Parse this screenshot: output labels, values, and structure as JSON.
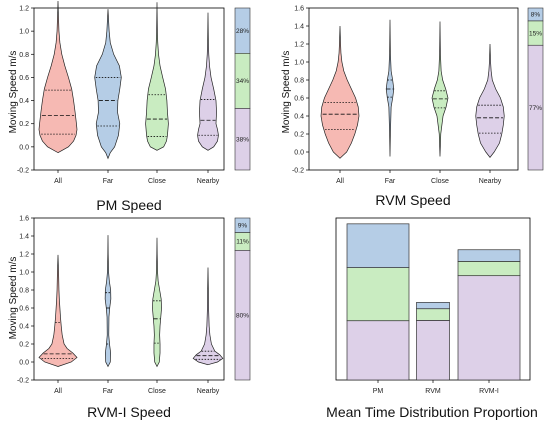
{
  "colors": {
    "All": "#f6b9b3",
    "Far": "#b5cde6",
    "Close": "#c9ecc1",
    "Nearby": "#ddd0e8",
    "stack_top": "#b5cde6",
    "stack_mid": "#c9ecc1",
    "stack_bottom": "#ddd0e8"
  },
  "chart_data": [
    {
      "type": "violin",
      "title": "PM Speed",
      "ylabel": "Moving Speed m/s",
      "categories": [
        "All",
        "Far",
        "Close",
        "Nearby"
      ],
      "ylim": [
        -0.2,
        1.2
      ],
      "yticks": [
        -0.2,
        0.0,
        0.2,
        0.4,
        0.6,
        0.8,
        1.0,
        1.2
      ],
      "ytick_labels": [
        "-0.2",
        "0.0",
        "0.2",
        "0.4",
        "0.6",
        "0.8",
        "1.0",
        "1.2"
      ],
      "violins": [
        {
          "name": "All",
          "min": -0.05,
          "max": 1.26,
          "q1": 0.11,
          "median": 0.27,
          "q3": 0.49,
          "profile": [
            [
              -0.05,
              0
            ],
            [
              0,
              0.55
            ],
            [
              0.05,
              0.82
            ],
            [
              0.1,
              0.95
            ],
            [
              0.15,
              1
            ],
            [
              0.2,
              0.97
            ],
            [
              0.3,
              0.9
            ],
            [
              0.4,
              0.82
            ],
            [
              0.5,
              0.72
            ],
            [
              0.6,
              0.55
            ],
            [
              0.7,
              0.36
            ],
            [
              0.8,
              0.2
            ],
            [
              0.9,
              0.1
            ],
            [
              1.0,
              0.05
            ],
            [
              1.1,
              0.03
            ],
            [
              1.26,
              0
            ]
          ]
        },
        {
          "name": "Far",
          "min": -0.1,
          "max": 1.19,
          "q1": 0.18,
          "median": 0.4,
          "q3": 0.6,
          "profile": [
            [
              -0.1,
              0
            ],
            [
              -0.05,
              0.12
            ],
            [
              0,
              0.35
            ],
            [
              0.1,
              0.55
            ],
            [
              0.2,
              0.62
            ],
            [
              0.3,
              0.5
            ],
            [
              0.4,
              0.52
            ],
            [
              0.5,
              0.62
            ],
            [
              0.6,
              0.7
            ],
            [
              0.7,
              0.6
            ],
            [
              0.8,
              0.3
            ],
            [
              0.9,
              0.12
            ],
            [
              1.0,
              0.06
            ],
            [
              1.19,
              0
            ]
          ]
        },
        {
          "name": "Close",
          "min": -0.03,
          "max": 1.25,
          "q1": 0.09,
          "median": 0.24,
          "q3": 0.45,
          "profile": [
            [
              -0.03,
              0
            ],
            [
              0,
              0.35
            ],
            [
              0.05,
              0.5
            ],
            [
              0.1,
              0.55
            ],
            [
              0.2,
              0.6
            ],
            [
              0.3,
              0.55
            ],
            [
              0.4,
              0.52
            ],
            [
              0.5,
              0.45
            ],
            [
              0.6,
              0.3
            ],
            [
              0.7,
              0.16
            ],
            [
              0.8,
              0.08
            ],
            [
              0.9,
              0.04
            ],
            [
              1.0,
              0.02
            ],
            [
              1.25,
              0
            ]
          ]
        },
        {
          "name": "Nearby",
          "min": -0.03,
          "max": 1.16,
          "q1": 0.1,
          "median": 0.23,
          "q3": 0.41,
          "profile": [
            [
              -0.03,
              0
            ],
            [
              0,
              0.3
            ],
            [
              0.05,
              0.5
            ],
            [
              0.1,
              0.55
            ],
            [
              0.15,
              0.5
            ],
            [
              0.2,
              0.42
            ],
            [
              0.3,
              0.45
            ],
            [
              0.4,
              0.42
            ],
            [
              0.5,
              0.3
            ],
            [
              0.6,
              0.16
            ],
            [
              0.7,
              0.08
            ],
            [
              0.8,
              0.04
            ],
            [
              0.9,
              0.02
            ],
            [
              1.16,
              0
            ]
          ]
        }
      ],
      "stack": [
        {
          "label": "28%",
          "value": 28
        },
        {
          "label": "34%",
          "value": 34
        },
        {
          "label": "38%",
          "value": 38
        }
      ]
    },
    {
      "type": "violin",
      "title": "RVM Speed",
      "ylabel": "Moving Speed m/s",
      "categories": [
        "All",
        "Far",
        "Close",
        "Nearby"
      ],
      "ylim": [
        -0.2,
        1.6
      ],
      "yticks": [
        -0.2,
        0.0,
        0.2,
        0.4,
        0.6,
        0.8,
        1.0,
        1.2,
        1.4,
        1.6
      ],
      "ytick_labels": [
        "-0.2",
        "0.0",
        "0.2",
        "0.4",
        "0.6",
        "0.8",
        "1.0",
        "1.2",
        "1.4",
        "1.6"
      ],
      "violins": [
        {
          "name": "All",
          "min": -0.07,
          "max": 1.4,
          "q1": 0.25,
          "median": 0.42,
          "q3": 0.55,
          "profile": [
            [
              -0.07,
              0
            ],
            [
              0,
              0.35
            ],
            [
              0.1,
              0.6
            ],
            [
              0.2,
              0.78
            ],
            [
              0.3,
              0.92
            ],
            [
              0.4,
              1
            ],
            [
              0.5,
              0.96
            ],
            [
              0.6,
              0.82
            ],
            [
              0.7,
              0.6
            ],
            [
              0.8,
              0.38
            ],
            [
              0.9,
              0.2
            ],
            [
              1.0,
              0.1
            ],
            [
              1.1,
              0.05
            ],
            [
              1.2,
              0.03
            ],
            [
              1.4,
              0
            ]
          ]
        },
        {
          "name": "Far",
          "min": -0.05,
          "max": 1.47,
          "q1": 0.61,
          "median": 0.7,
          "q3": 0.8,
          "profile": [
            [
              -0.05,
              0
            ],
            [
              0.2,
              0.02
            ],
            [
              0.5,
              0.06
            ],
            [
              0.6,
              0.14
            ],
            [
              0.7,
              0.2
            ],
            [
              0.8,
              0.14
            ],
            [
              0.9,
              0.06
            ],
            [
              1.1,
              0.02
            ],
            [
              1.47,
              0
            ]
          ]
        },
        {
          "name": "Close",
          "min": -0.05,
          "max": 1.45,
          "q1": 0.49,
          "median": 0.59,
          "q3": 0.68,
          "profile": [
            [
              -0.05,
              0
            ],
            [
              0.2,
              0.04
            ],
            [
              0.4,
              0.16
            ],
            [
              0.5,
              0.32
            ],
            [
              0.6,
              0.42
            ],
            [
              0.7,
              0.3
            ],
            [
              0.8,
              0.14
            ],
            [
              0.9,
              0.06
            ],
            [
              1.1,
              0.02
            ],
            [
              1.45,
              0
            ]
          ]
        },
        {
          "name": "Nearby",
          "min": -0.06,
          "max": 1.2,
          "q1": 0.21,
          "median": 0.38,
          "q3": 0.52,
          "profile": [
            [
              -0.06,
              0
            ],
            [
              0,
              0.22
            ],
            [
              0.1,
              0.5
            ],
            [
              0.2,
              0.62
            ],
            [
              0.3,
              0.7
            ],
            [
              0.4,
              0.75
            ],
            [
              0.5,
              0.7
            ],
            [
              0.6,
              0.55
            ],
            [
              0.7,
              0.3
            ],
            [
              0.8,
              0.12
            ],
            [
              0.9,
              0.06
            ],
            [
              1.0,
              0.03
            ],
            [
              1.2,
              0
            ]
          ]
        }
      ],
      "stack": [
        {
          "label": "8%",
          "value": 8
        },
        {
          "label": "15%",
          "value": 15
        },
        {
          "label": "77%",
          "value": 77
        }
      ]
    },
    {
      "type": "violin",
      "title": "RVM-I Speed",
      "ylabel": "Moving Speed m/s",
      "categories": [
        "All",
        "Far",
        "Close",
        "Nearby"
      ],
      "ylim": [
        -0.2,
        1.6
      ],
      "yticks": [
        -0.2,
        0.0,
        0.2,
        0.4,
        0.6,
        0.8,
        1.0,
        1.2,
        1.4,
        1.6
      ],
      "ytick_labels": [
        "-0.2",
        "0.0",
        "0.2",
        "0.4",
        "0.6",
        "0.8",
        "1.0",
        "1.2",
        "1.4",
        "1.6"
      ],
      "violins": [
        {
          "name": "All",
          "min": -0.05,
          "max": 1.19,
          "q1": 0.04,
          "median": 0.09,
          "q3": 0.44,
          "profile": [
            [
              -0.05,
              0
            ],
            [
              0,
              0.7
            ],
            [
              0.05,
              1
            ],
            [
              0.1,
              0.78
            ],
            [
              0.15,
              0.48
            ],
            [
              0.2,
              0.32
            ],
            [
              0.3,
              0.22
            ],
            [
              0.4,
              0.17
            ],
            [
              0.5,
              0.13
            ],
            [
              0.6,
              0.1
            ],
            [
              0.7,
              0.07
            ],
            [
              0.8,
              0.05
            ],
            [
              1.0,
              0.03
            ],
            [
              1.19,
              0
            ]
          ]
        },
        {
          "name": "Far",
          "min": -0.05,
          "max": 1.41,
          "q1": 0.2,
          "median": 0.6,
          "q3": 0.77,
          "profile": [
            [
              -0.05,
              0
            ],
            [
              0,
              0.12
            ],
            [
              0.1,
              0.14
            ],
            [
              0.2,
              0.08
            ],
            [
              0.3,
              0.04
            ],
            [
              0.5,
              0.05
            ],
            [
              0.6,
              0.09
            ],
            [
              0.7,
              0.15
            ],
            [
              0.8,
              0.14
            ],
            [
              0.9,
              0.07
            ],
            [
              1.0,
              0.03
            ],
            [
              1.2,
              0.01
            ],
            [
              1.41,
              0
            ]
          ]
        },
        {
          "name": "Close",
          "min": -0.05,
          "max": 1.38,
          "q1": 0.21,
          "median": 0.48,
          "q3": 0.68,
          "profile": [
            [
              -0.05,
              0
            ],
            [
              0,
              0.12
            ],
            [
              0.1,
              0.16
            ],
            [
              0.2,
              0.16
            ],
            [
              0.3,
              0.14
            ],
            [
              0.4,
              0.16
            ],
            [
              0.5,
              0.2
            ],
            [
              0.6,
              0.24
            ],
            [
              0.7,
              0.22
            ],
            [
              0.8,
              0.14
            ],
            [
              0.9,
              0.06
            ],
            [
              1.0,
              0.03
            ],
            [
              1.2,
              0.01
            ],
            [
              1.38,
              0
            ]
          ]
        },
        {
          "name": "Nearby",
          "min": -0.03,
          "max": 1.05,
          "q1": 0.03,
          "median": 0.07,
          "q3": 0.12,
          "profile": [
            [
              -0.03,
              0
            ],
            [
              0,
              0.5
            ],
            [
              0.04,
              0.78
            ],
            [
              0.08,
              0.62
            ],
            [
              0.12,
              0.36
            ],
            [
              0.2,
              0.18
            ],
            [
              0.3,
              0.1
            ],
            [
              0.4,
              0.06
            ],
            [
              0.6,
              0.03
            ],
            [
              0.8,
              0.02
            ],
            [
              1.05,
              0
            ]
          ]
        }
      ],
      "stack": [
        {
          "label": "9%",
          "value": 9
        },
        {
          "label": "11%",
          "value": 11
        },
        {
          "label": "80%",
          "value": 80
        }
      ]
    },
    {
      "type": "bar",
      "stacked": true,
      "title": "Mean Time Distribution Proportion",
      "categories": [
        "PM",
        "RVM",
        "RVM-I"
      ],
      "ylim": [
        0,
        1.0
      ],
      "series": [
        {
          "values": [
            0.366,
            0.368,
            0.644
          ]
        },
        {
          "values": [
            0.328,
            0.072,
            0.088
          ]
        },
        {
          "values": [
            0.27,
            0.039,
            0.072
          ]
        }
      ]
    }
  ]
}
